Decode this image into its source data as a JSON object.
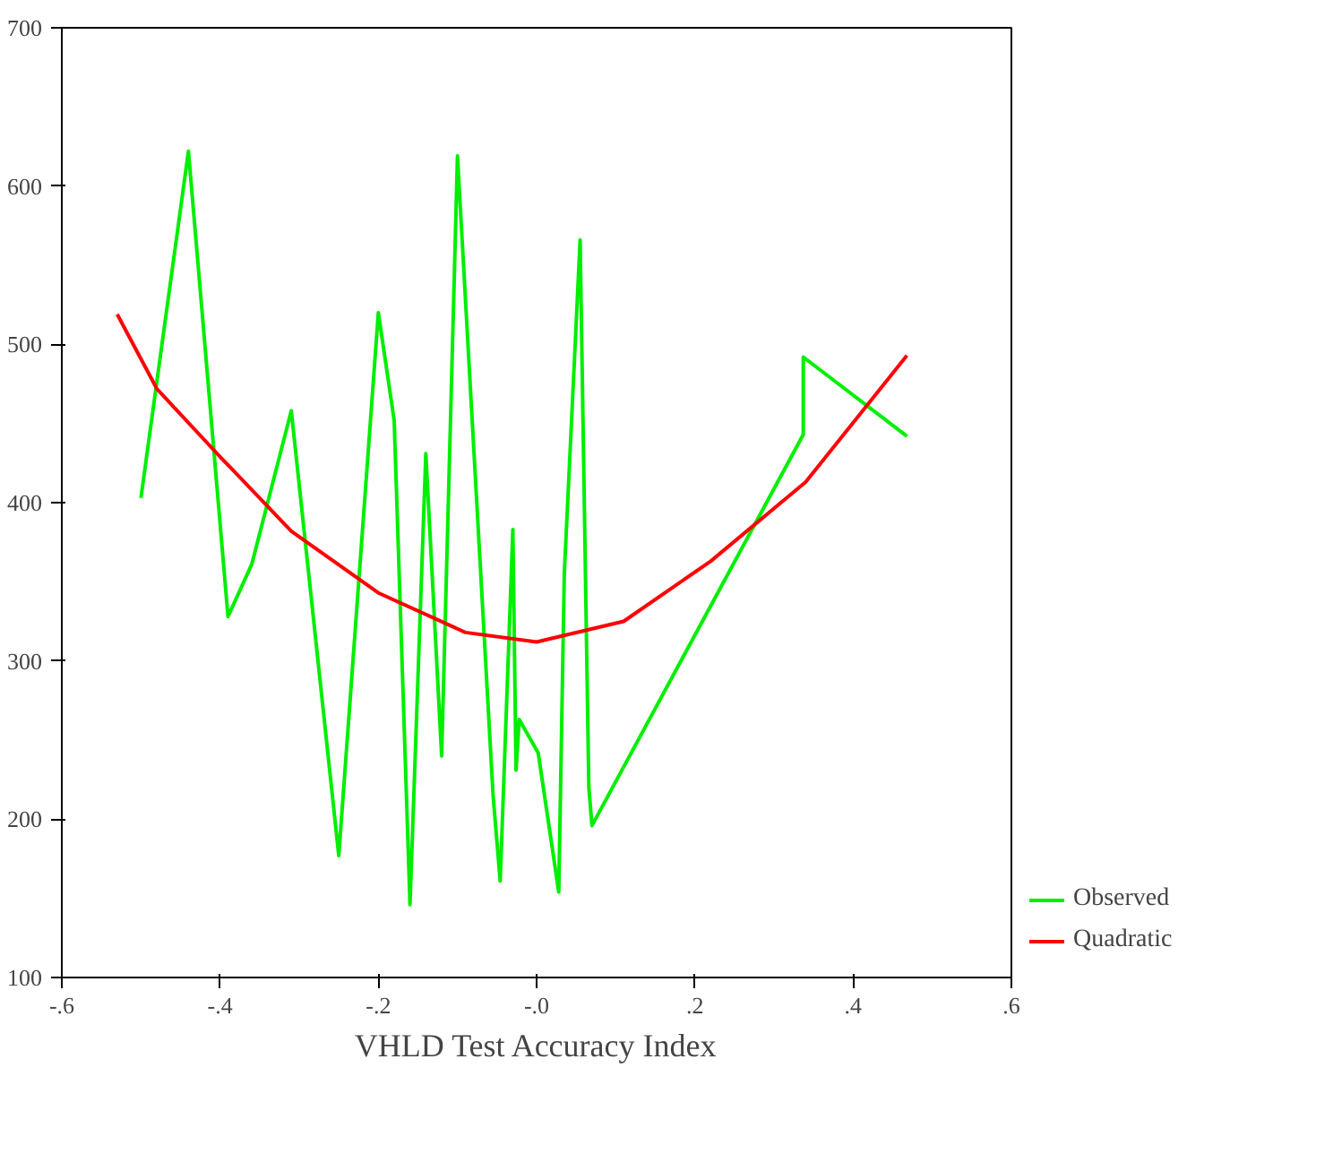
{
  "chart_data": {
    "type": "line",
    "xlabel": "VHLD Test Accuracy Index",
    "xlim": [
      -0.6,
      0.6
    ],
    "ylim": [
      100,
      700
    ],
    "xticks": [
      {
        "value": -0.6,
        "label": "-.6"
      },
      {
        "value": -0.4,
        "label": "-.4"
      },
      {
        "value": -0.2,
        "label": "-.2"
      },
      {
        "value": 0,
        "label": "-.0"
      },
      {
        "value": 0.2,
        "label": ".2"
      },
      {
        "value": 0.4,
        "label": ".4"
      },
      {
        "value": 0.6,
        "label": ".6"
      }
    ],
    "yticks": [
      100,
      200,
      300,
      400,
      500,
      600,
      700
    ],
    "grid": false,
    "legend": "bottom right",
    "marker": "none",
    "line_style": "solid",
    "series": [
      {
        "name": "Observed",
        "color": "#00ee00",
        "x": [
          -0.5,
          -0.44,
          -0.39,
          -0.36,
          -0.31,
          -0.25,
          -0.2,
          -0.18,
          -0.16,
          -0.14,
          -0.12,
          -0.1,
          -0.055,
          -0.046,
          -0.03,
          -0.026,
          -0.022,
          0.002,
          0.028,
          0.035,
          0.055,
          0.066,
          0.07,
          0.337,
          0.337,
          0.468
        ],
        "values": [
          403,
          622,
          328,
          361,
          458,
          177,
          520,
          452,
          146,
          431,
          240,
          619,
          215,
          161,
          383,
          231,
          263,
          242,
          154,
          355,
          566,
          220,
          196,
          443,
          492,
          442
        ]
      },
      {
        "name": "Quadratic",
        "color": "#ff0000",
        "x": [
          -0.53,
          -0.48,
          -0.4,
          -0.31,
          -0.2,
          -0.09,
          0,
          0.11,
          0.22,
          0.34,
          0.468
        ],
        "values": [
          519,
          472,
          429,
          382,
          343,
          318,
          312,
          325,
          363,
          413,
          493
        ]
      }
    ]
  }
}
